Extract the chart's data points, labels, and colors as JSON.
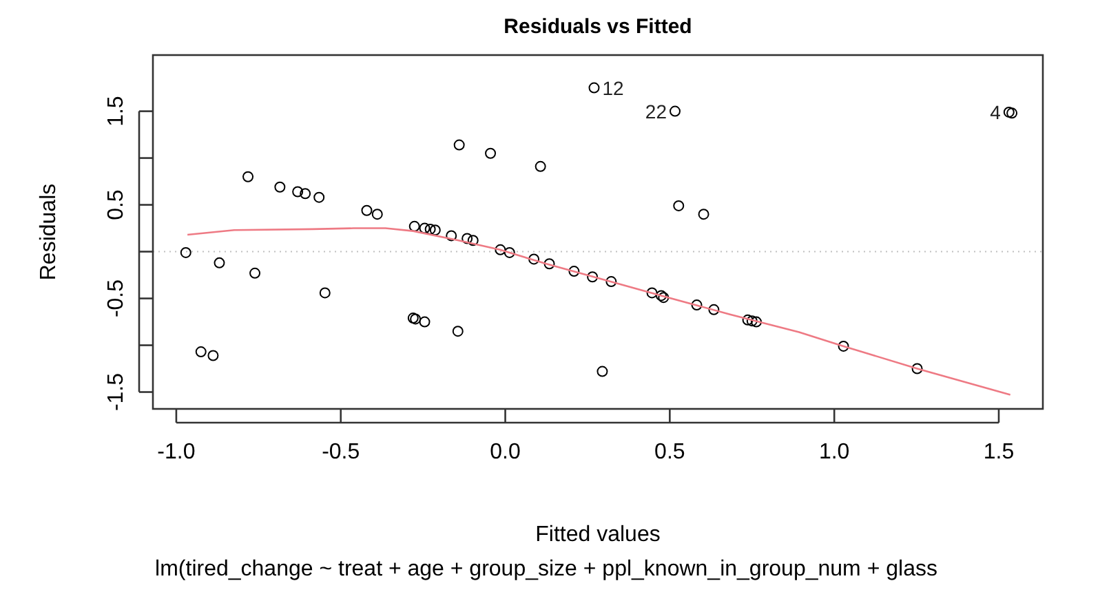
{
  "chart_data": {
    "type": "scatter",
    "title": "Residuals vs Fitted",
    "xlabel": "Fitted values",
    "ylabel": "Residuals",
    "annotations": [
      "lm(tired_change ~ treat + age + group_size + ppl_known_in_group_num + glass",
      {
        "text": "12",
        "x": 0.27,
        "y": 1.75
      },
      {
        "text": "22",
        "x": 0.516,
        "y": 1.5
      },
      {
        "text": "4",
        "x": 1.531,
        "y": 1.49
      }
    ],
    "xlim": [
      -1.071,
      1.634
    ],
    "ylim": [
      -1.68,
      2.1
    ],
    "xticks": [
      {
        "value": -1,
        "label": "-1.0"
      },
      -0.5,
      {
        "value": 0,
        "label": "0.0"
      },
      0.5,
      {
        "value": 1,
        "label": "1.0"
      },
      1.5
    ],
    "yticks": [
      -1.5,
      {
        "value": -1,
        "label": null
      },
      -0.5,
      {
        "value": 0,
        "label": null
      },
      0.5,
      {
        "value": 1,
        "label": null
      },
      1.5
    ],
    "grid": false,
    "ref_lines": [
      {
        "axis": "y",
        "value": 0,
        "color": "#bfbfbf",
        "line_style": "dotted"
      }
    ],
    "series": [
      {
        "color": "#000000",
        "marker": "circle",
        "x": [
          -0.971,
          -0.869,
          -0.782,
          -0.761,
          -0.925,
          -0.888,
          -0.685,
          -0.631,
          -0.608,
          -0.566,
          -0.548,
          -0.421,
          -0.389,
          -0.276,
          -0.28,
          -0.273,
          -0.245,
          -0.245,
          -0.228,
          -0.213,
          -0.164,
          -0.14,
          -0.144,
          -0.116,
          -0.098,
          -0.045,
          -0.015,
          0.013,
          0.107,
          0.087,
          0.134,
          0.209,
          0.265,
          0.322,
          0.27,
          0.516,
          0.295,
          0.527,
          0.603,
          0.446,
          0.474,
          0.481,
          0.582,
          0.634,
          0.737,
          0.75,
          0.763,
          1.028,
          1.252,
          1.531,
          1.54
        ],
        "values": [
          -0.01,
          -0.12,
          0.8,
          -0.23,
          -1.07,
          -1.11,
          0.69,
          0.64,
          0.62,
          0.58,
          -0.44,
          0.44,
          0.4,
          0.27,
          -0.71,
          -0.72,
          -0.75,
          0.25,
          0.24,
          0.23,
          0.17,
          1.14,
          -0.85,
          0.14,
          0.12,
          1.05,
          0.02,
          -0.01,
          0.91,
          -0.08,
          -0.13,
          -0.21,
          -0.27,
          -0.32,
          1.75,
          1.5,
          -1.28,
          0.49,
          0.4,
          -0.44,
          -0.47,
          -0.49,
          -0.57,
          -0.62,
          -0.73,
          -0.74,
          -0.75,
          -1.01,
          -1.25,
          1.49,
          1.48
        ]
      },
      {
        "type": "line",
        "color": "#ee7a84",
        "marker": "none",
        "line_style": "solid",
        "x": [
          -0.966,
          -0.824,
          -0.587,
          -0.461,
          -0.364,
          -0.28,
          -0.142,
          -0.016,
          0.125,
          0.32,
          0.474,
          0.683,
          0.893,
          1.028,
          1.252,
          1.535
        ],
        "values": [
          0.18,
          0.23,
          0.24,
          0.25,
          0.25,
          0.22,
          0.12,
          0.02,
          -0.13,
          -0.32,
          -0.47,
          -0.67,
          -0.86,
          -1.01,
          -1.25,
          -1.53
        ]
      }
    ]
  }
}
